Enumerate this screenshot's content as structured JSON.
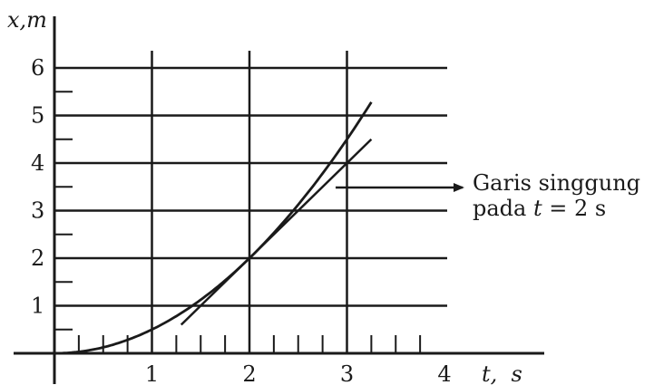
{
  "chart_data": {
    "type": "line",
    "x_axis_label": "t,  s",
    "y_axis_label": "x,m",
    "x_ticks": [
      "1",
      "2",
      "3",
      "4"
    ],
    "y_ticks": [
      "1",
      "2",
      "3",
      "4",
      "5",
      "6"
    ],
    "xlim": [
      0,
      4
    ],
    "ylim": [
      0,
      6
    ],
    "grid": true,
    "series": [
      {
        "kind": "curve",
        "function": "x = t^2 / 2",
        "points": [
          [
            0,
            0
          ],
          [
            0.5,
            0.125
          ],
          [
            1,
            0.5
          ],
          [
            1.5,
            1.125
          ],
          [
            2,
            2
          ],
          [
            2.5,
            3.125
          ],
          [
            3,
            4.5
          ],
          [
            3.25,
            5.28
          ]
        ]
      },
      {
        "kind": "tangent",
        "at_t": 2,
        "slope": 2,
        "points": [
          [
            1.3,
            0.6
          ],
          [
            3.25,
            4.5
          ]
        ]
      }
    ],
    "annotation": {
      "line1": "Garis singgung",
      "line2_prefix": "pada ",
      "line2_var": "t",
      "line2_suffix": " = 2 s"
    }
  }
}
